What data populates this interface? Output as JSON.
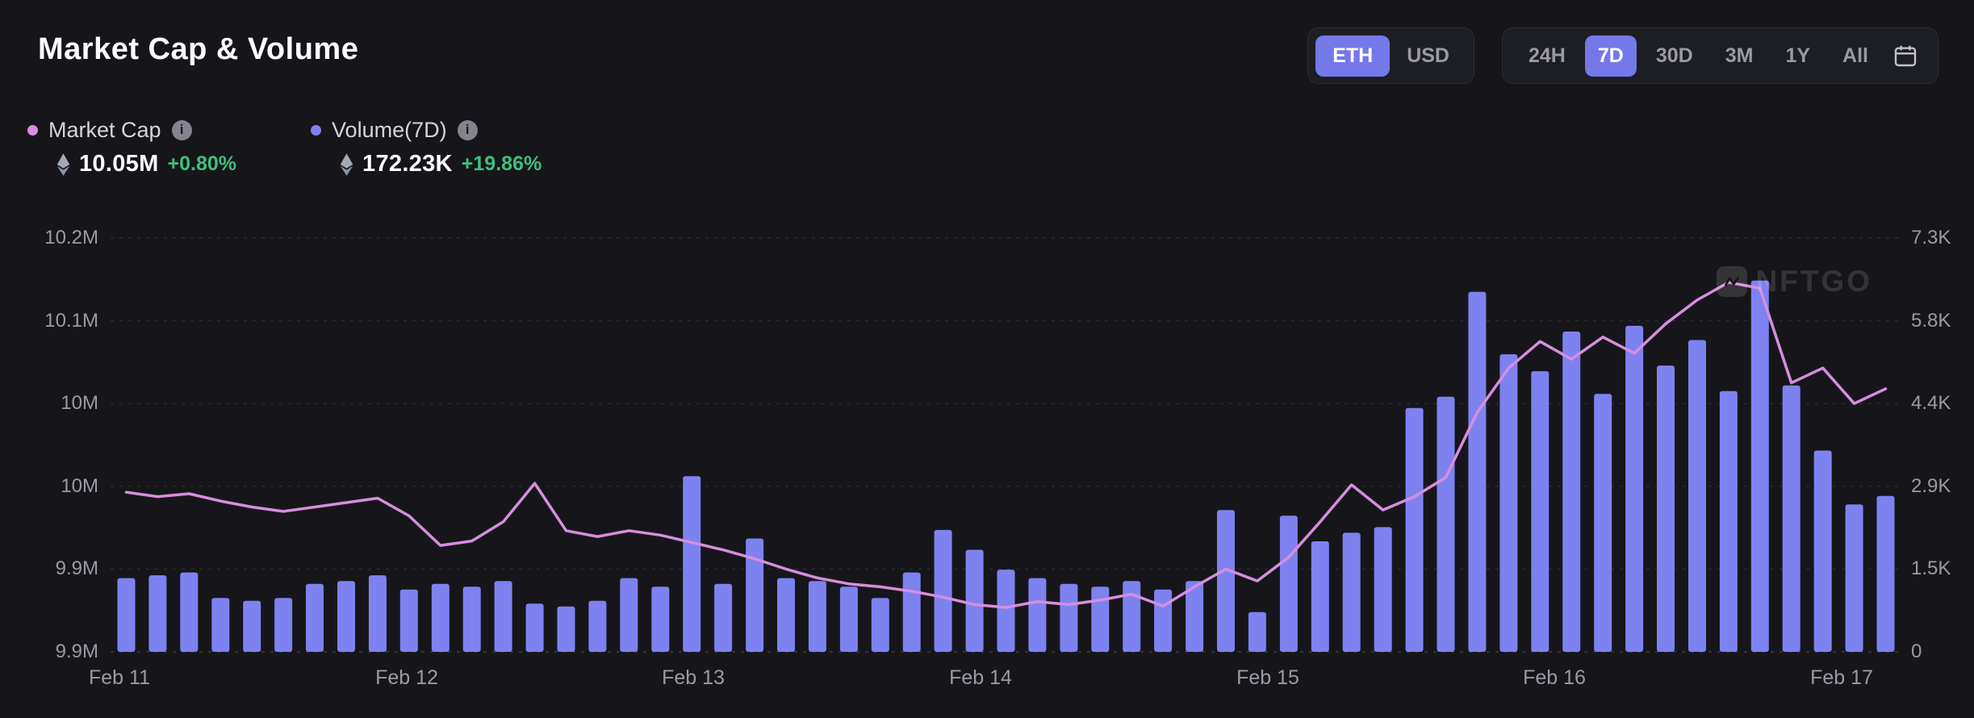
{
  "header": {
    "title": "Market Cap & Volume"
  },
  "controls": {
    "currency": {
      "options": [
        "ETH",
        "USD"
      ],
      "selected": "ETH"
    },
    "range": {
      "options": [
        "24H",
        "7D",
        "30D",
        "3M",
        "1Y",
        "All"
      ],
      "selected": "7D"
    },
    "calendar_icon": "calendar-icon"
  },
  "legend": {
    "market_cap": {
      "label": "Market Cap",
      "unit_icon": "ethereum-icon",
      "value": "10.05M",
      "change": "+0.80%"
    },
    "volume": {
      "label": "Volume(7D)",
      "unit_icon": "ethereum-icon",
      "value": "172.23K",
      "change": "+19.86%"
    }
  },
  "watermark": {
    "text": "NFTGO"
  },
  "colors": {
    "bg": "#16161a",
    "panel": "#1d1d24",
    "border": "#2d2d36",
    "accent": "#7578e9",
    "muted": "#9a9aa5",
    "green": "#3ec07e",
    "bar": "#7e82f0",
    "line": "#d78ede"
  },
  "chart_data": {
    "type": "bar",
    "subtype": "combo-line-and-bar",
    "title": "Market Cap & Volume",
    "grid": true,
    "legend_position": "top-left",
    "x_labels": [
      "Feb 11",
      "Feb 12",
      "Feb 13",
      "Feb 14",
      "Feb 15",
      "Feb 16",
      "Feb 17"
    ],
    "left_axis": {
      "title": "Market Cap (ETH)",
      "tick_labels": [
        "10.2M",
        "10.1M",
        "10M",
        "10M",
        "9.9M",
        "9.9M"
      ],
      "min": 9.88,
      "max": 10.16,
      "unit": "M ETH"
    },
    "right_axis": {
      "title": "Volume (ETH)",
      "tick_labels": [
        "7.3K",
        "5.8K",
        "4.4K",
        "2.9K",
        "1.5K",
        "0"
      ],
      "min": 0,
      "max": 7.3,
      "unit": "K ETH"
    },
    "series": [
      {
        "name": "Market Cap",
        "type": "line",
        "axis": "left",
        "unit": "M ETH",
        "color": "#d78ede",
        "current_value": "10.05M",
        "change": "+0.80%",
        "values": [
          9.988,
          9.985,
          9.987,
          9.982,
          9.978,
          9.975,
          9.978,
          9.981,
          9.984,
          9.972,
          9.952,
          9.955,
          9.968,
          9.994,
          9.962,
          9.958,
          9.962,
          9.959,
          9.954,
          9.949,
          9.943,
          9.936,
          9.93,
          9.926,
          9.924,
          9.921,
          9.917,
          9.912,
          9.91,
          9.914,
          9.912,
          9.915,
          9.919,
          9.911,
          9.924,
          9.936,
          9.928,
          9.944,
          9.968,
          9.993,
          9.976,
          9.985,
          9.998,
          10.042,
          10.072,
          10.09,
          10.078,
          10.093,
          10.082,
          10.102,
          10.118,
          10.13,
          10.126,
          10.062,
          10.072,
          10.048,
          10.058
        ]
      },
      {
        "name": "Volume(7D)",
        "type": "bar",
        "axis": "right",
        "unit": "K ETH",
        "color": "#7e82f0",
        "current_value": "172.23K",
        "change": "+19.86%",
        "values": [
          1.3,
          1.35,
          1.4,
          0.95,
          0.9,
          0.95,
          1.2,
          1.25,
          1.35,
          1.1,
          1.2,
          1.15,
          1.25,
          0.85,
          0.8,
          0.9,
          1.3,
          1.15,
          3.1,
          1.2,
          2.0,
          1.3,
          1.25,
          1.15,
          0.95,
          1.4,
          2.15,
          1.8,
          1.45,
          1.3,
          1.2,
          1.15,
          1.25,
          1.1,
          1.25,
          2.5,
          0.7,
          2.4,
          1.95,
          2.1,
          2.2,
          4.3,
          4.5,
          6.35,
          5.25,
          4.95,
          5.65,
          4.55,
          5.75,
          5.05,
          5.5,
          4.6,
          6.55,
          4.7,
          3.55,
          2.6,
          2.75
        ]
      }
    ]
  }
}
